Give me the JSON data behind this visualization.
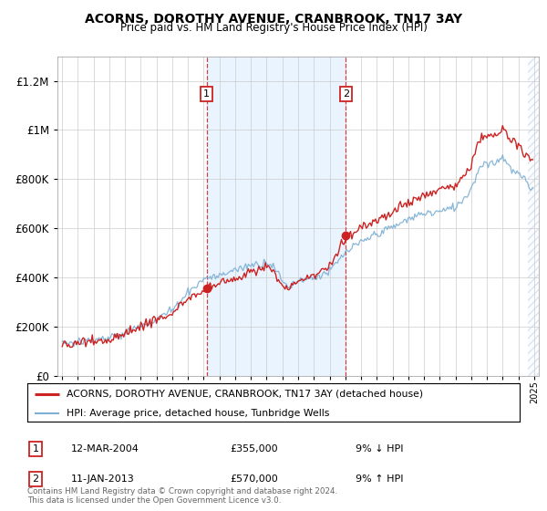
{
  "title": "ACORNS, DOROTHY AVENUE, CRANBROOK, TN17 3AY",
  "subtitle": "Price paid vs. HM Land Registry's House Price Index (HPI)",
  "legend_line1": "ACORNS, DOROTHY AVENUE, CRANBROOK, TN17 3AY (detached house)",
  "legend_line2": "HPI: Average price, detached house, Tunbridge Wells",
  "annotation1": {
    "label": "1",
    "date": "12-MAR-2004",
    "price": "£355,000",
    "pct": "9% ↓ HPI",
    "year": 2004.19,
    "value": 355000
  },
  "annotation2": {
    "label": "2",
    "date": "11-JAN-2013",
    "price": "£570,000",
    "pct": "9% ↑ HPI",
    "year": 2013.03,
    "value": 570000
  },
  "footer": "Contains HM Land Registry data © Crown copyright and database right 2024.\nThis data is licensed under the Open Government Licence v3.0.",
  "price_color": "#cc2222",
  "hpi_color": "#7bafd4",
  "shade_color": "#ddeeff",
  "hatch_color": "#ccddee",
  "ylim": [
    0,
    1300000
  ],
  "xlim_start": 1994.7,
  "xlim_end": 2025.3,
  "hatch_start": 2024.58
}
